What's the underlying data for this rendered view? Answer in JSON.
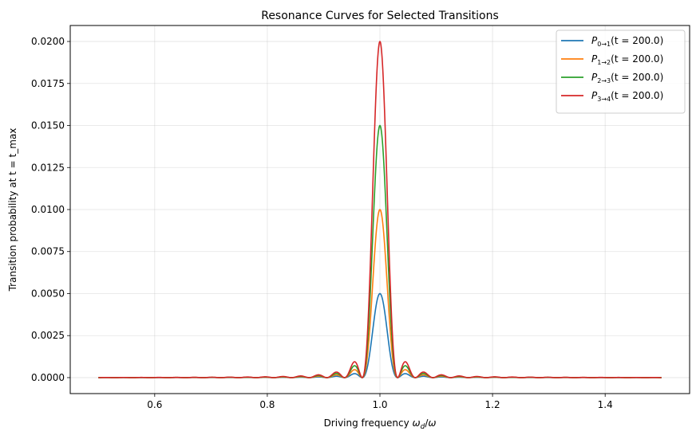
{
  "chart_data": {
    "type": "line",
    "title": "Resonance Curves for Selected Transitions",
    "xlabel": "Driving frequency ω_d/ω",
    "ylabel": "Transition probability at t = t_max",
    "xlim": [
      0.45,
      1.55
    ],
    "ylim": [
      -0.00095,
      0.02095
    ],
    "xticks": [
      0.6,
      0.8,
      1.0,
      1.2,
      1.4
    ],
    "xtick_labels": [
      "0.6",
      "0.8",
      "1.0",
      "1.2",
      "1.4"
    ],
    "yticks": [
      0.0,
      0.0025,
      0.005,
      0.0075,
      0.01,
      0.0125,
      0.015,
      0.0175,
      0.02
    ],
    "ytick_labels": [
      "0.0000",
      "0.0025",
      "0.0050",
      "0.0075",
      "0.0100",
      "0.0125",
      "0.0150",
      "0.0175",
      "0.0200"
    ],
    "grid": true,
    "legend_position": "top-right",
    "x_range": [
      0.5,
      1.5
    ],
    "t_max": 200.0,
    "series": [
      {
        "name": "P0→1(t = 200.0)",
        "sub": "0→1",
        "arg": "(t = 200.0)",
        "color": "#1f77b4",
        "peak": 0.005
      },
      {
        "name": "P1→2(t = 200.0)",
        "sub": "1→2",
        "arg": "(t = 200.0)",
        "color": "#ff7f0e",
        "peak": 0.01
      },
      {
        "name": "P2→3(t = 200.0)",
        "sub": "2→3",
        "arg": "(t = 200.0)",
        "color": "#2ca02c",
        "peak": 0.015
      },
      {
        "name": "P3→4(t = 200.0)",
        "sub": "3→4",
        "arg": "(t = 200.0)",
        "color": "#d62728",
        "peak": 0.02
      }
    ]
  }
}
